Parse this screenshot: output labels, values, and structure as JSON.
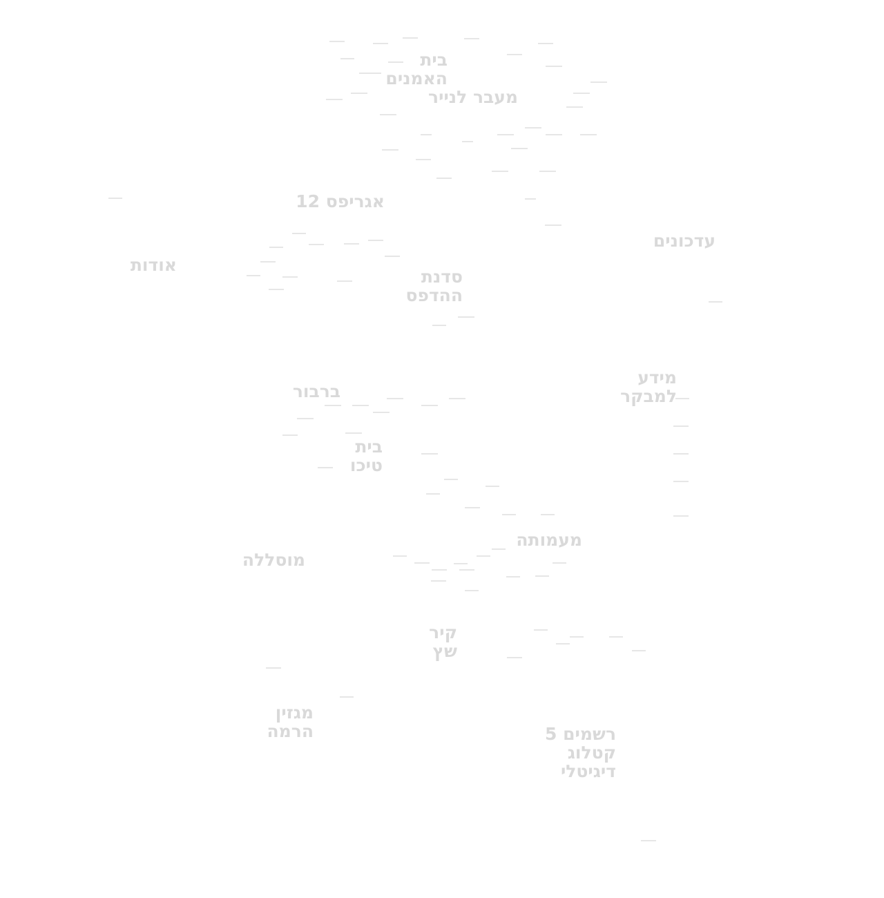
{
  "colors": {
    "background": "#ffffff",
    "link_text": "#d9d9d9",
    "dash": "#e6e6e6"
  },
  "nav": {
    "about": "אודות",
    "updates": "עדכונים",
    "info_for_visitors": [
      "מידע",
      "למבקר"
    ]
  },
  "locations": {
    "beit_haomanim": [
      "בית",
      "האמנים"
    ],
    "beyond_paper": "מעבר לנייר",
    "agripas_12": "אגריפס 12",
    "print_workshop": [
      "סדנת",
      "ההדפס"
    ],
    "barbur": "ברבור",
    "beit_tycho": [
      "בית",
      "טיכו"
    ],
    "maamuta": "מעמותה",
    "mesila": "מוסללה",
    "kir_shatz": [
      "קיר",
      "שץ"
    ],
    "hirama_magazine": [
      "מגזין",
      "הרמה"
    ],
    "reshamim_5": [
      "רשמים 5",
      "קטלוג",
      "דיגיטלי"
    ]
  }
}
